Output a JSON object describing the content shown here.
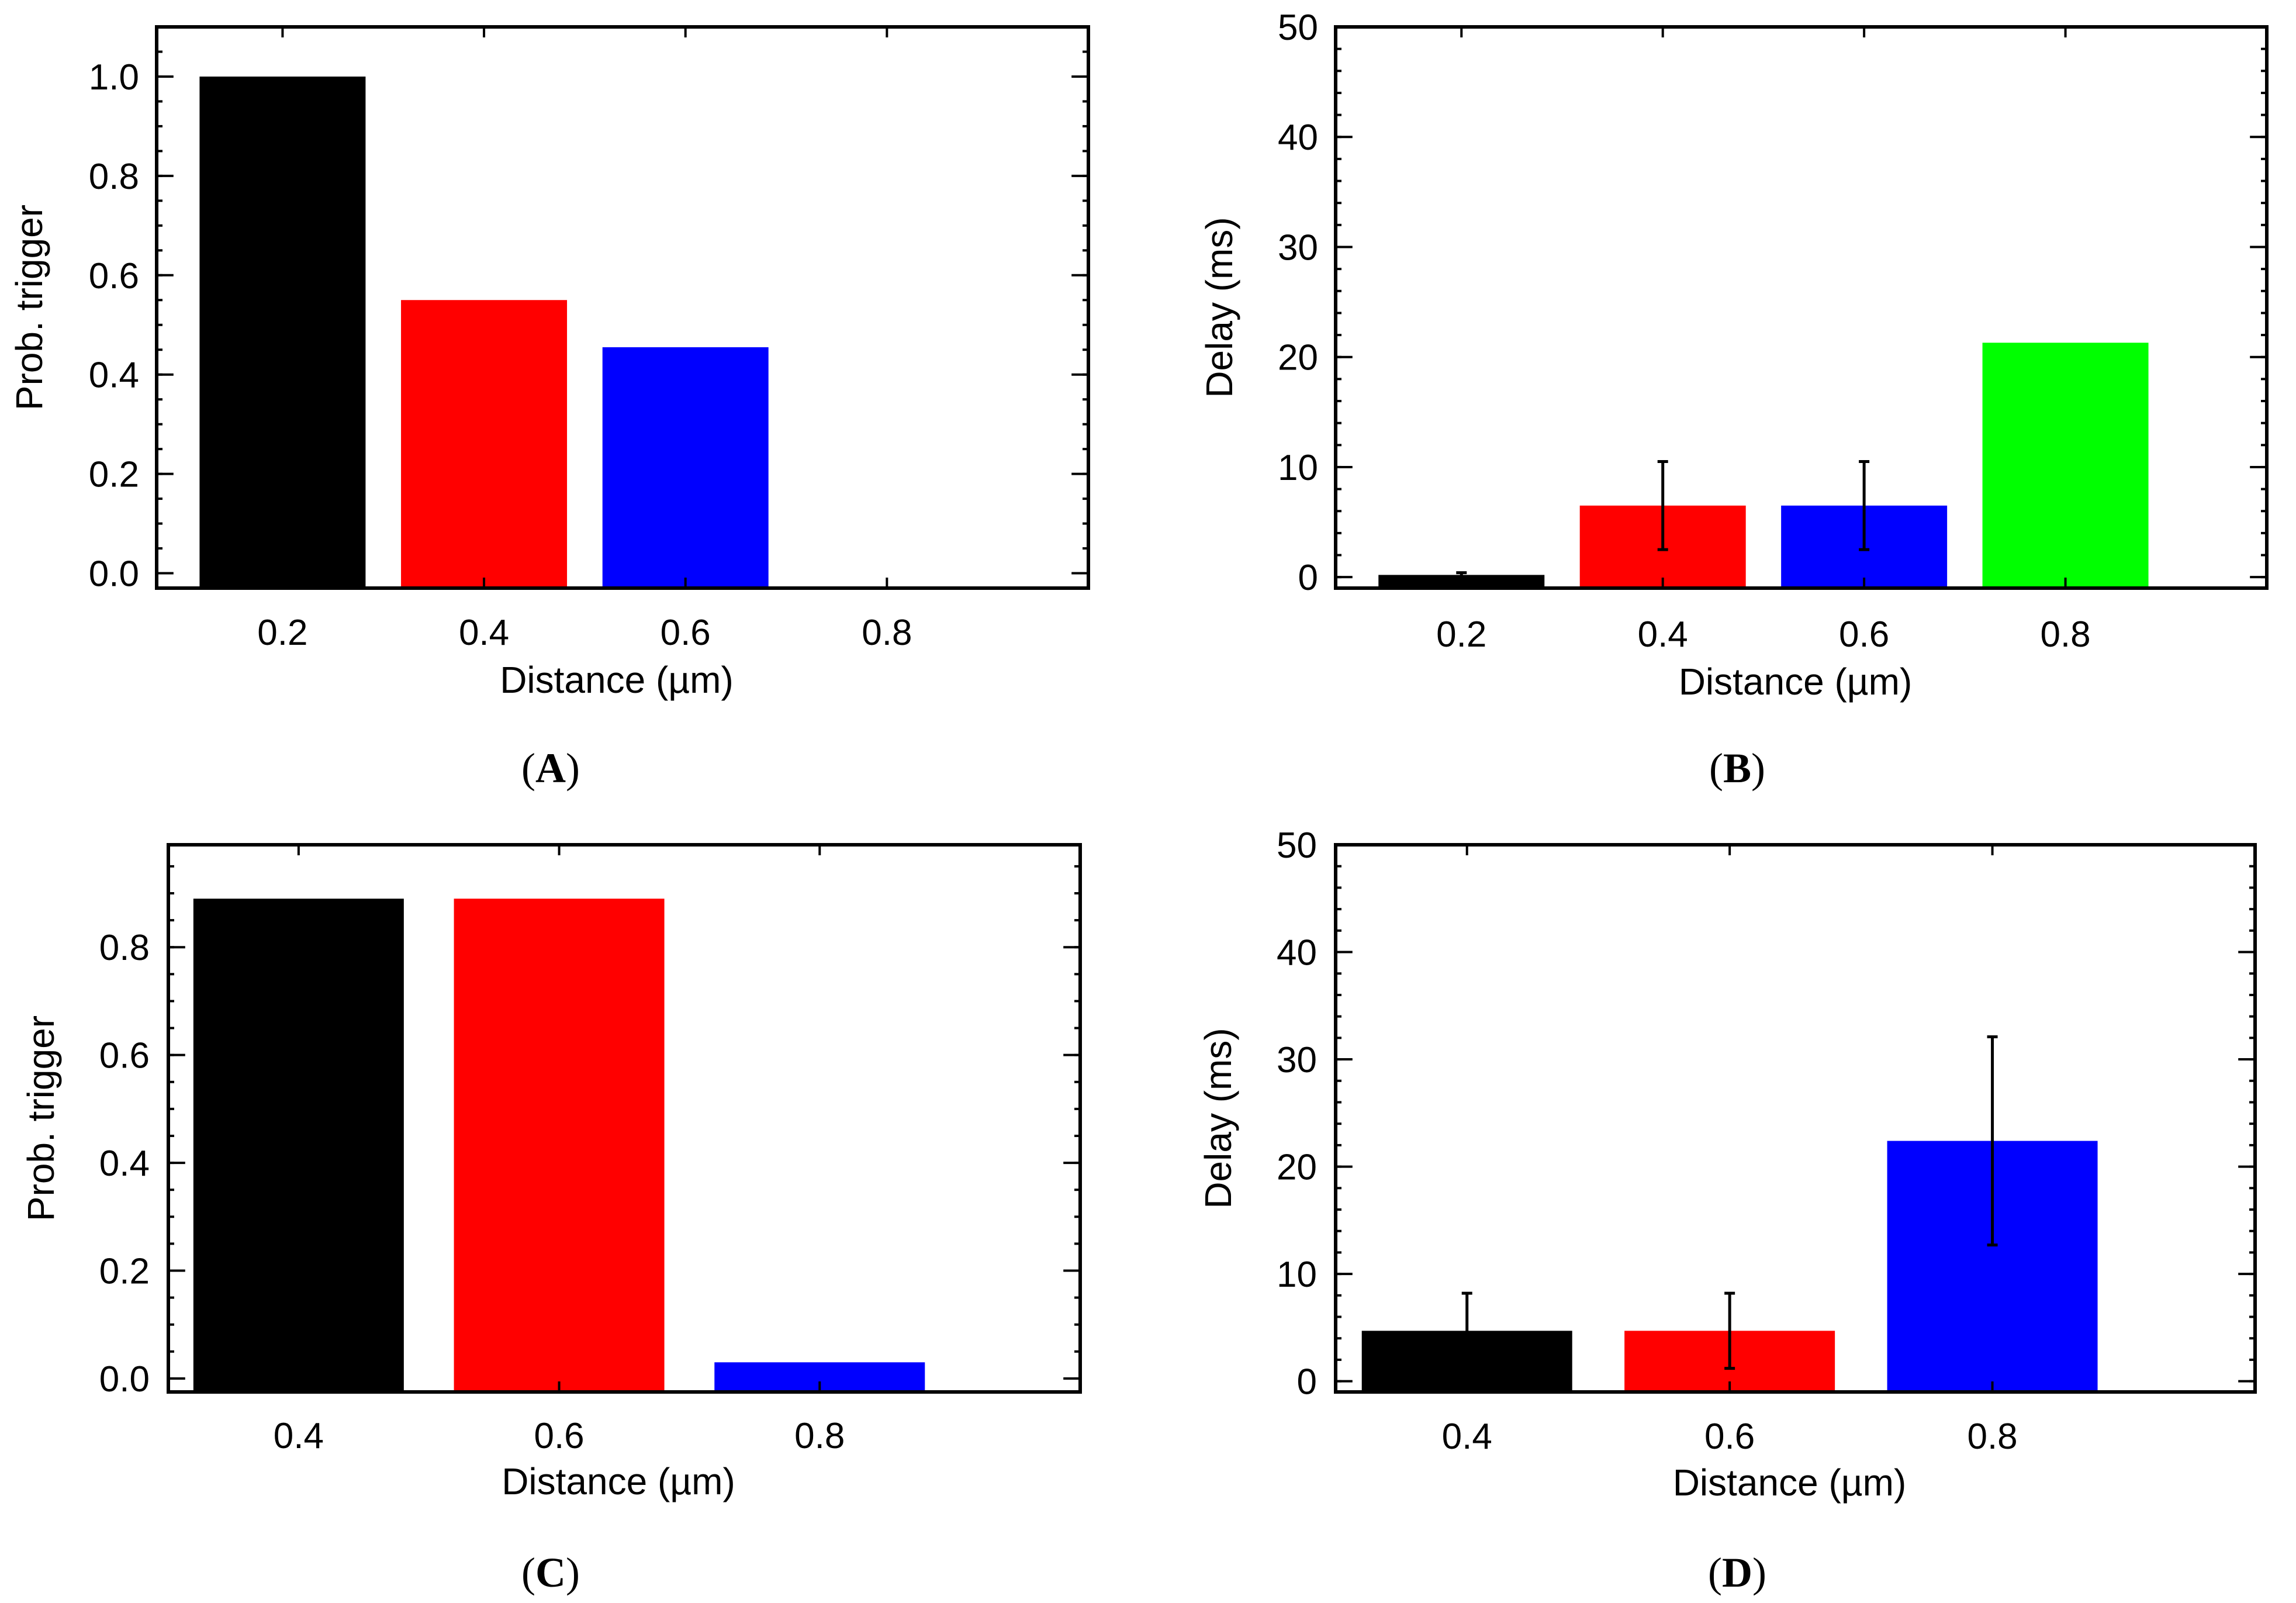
{
  "chart_data": [
    {
      "panel": "A",
      "type": "bar",
      "xlabel": "Distance (µm)",
      "ylabel": "Prob. trigger",
      "categories": [
        "0.2",
        "0.4",
        "0.6",
        "0.8"
      ],
      "values": [
        1.0,
        0.55,
        0.455,
        0.0
      ],
      "colors": [
        "#000000",
        "#ff0000",
        "#0000ff",
        "#00ff00"
      ],
      "errors": null,
      "ylim": [
        -0.03,
        1.1
      ],
      "yticks": [
        0.0,
        0.2,
        0.4,
        0.6,
        0.8,
        1.0
      ],
      "ytick_labels": [
        "0.0",
        "0.2",
        "0.4",
        "0.6",
        "0.8",
        "1.0"
      ],
      "minor_step": 0.05,
      "xlim": [
        0.075,
        1.0
      ]
    },
    {
      "panel": "B",
      "type": "bar",
      "xlabel": "Distance (µm)",
      "ylabel": "Delay (ms)",
      "categories": [
        "0.2",
        "0.4",
        "0.6",
        "0.8"
      ],
      "values": [
        0.2,
        6.5,
        6.5,
        21.3
      ],
      "colors": [
        "#000000",
        "#ff0000",
        "#0000ff",
        "#00ff00"
      ],
      "errors": [
        0.2,
        4.0,
        4.0,
        0.0
      ],
      "ylim": [
        -1.0,
        50.0
      ],
      "yticks": [
        0,
        10,
        20,
        30,
        40,
        50
      ],
      "ytick_labels": [
        "0",
        "10",
        "20",
        "30",
        "40",
        "50"
      ],
      "minor_step": 2,
      "xlim": [
        0.075,
        1.0
      ]
    },
    {
      "panel": "C",
      "type": "bar",
      "xlabel": "Distance (µm)",
      "ylabel": "Prob. trigger",
      "categories": [
        "0.4",
        "0.6",
        "0.8"
      ],
      "values": [
        0.89,
        0.89,
        0.03
      ],
      "colors": [
        "#000000",
        "#ff0000",
        "#0000ff"
      ],
      "errors": null,
      "ylim": [
        -0.025,
        0.99
      ],
      "yticks": [
        0.0,
        0.2,
        0.4,
        0.6,
        0.8
      ],
      "ytick_labels": [
        "0.0",
        "0.2",
        "0.4",
        "0.6",
        "0.8"
      ],
      "minor_step": 0.05,
      "xlim": [
        0.3,
        1.0
      ]
    },
    {
      "panel": "D",
      "type": "bar",
      "xlabel": "Distance (µm)",
      "ylabel": "Delay (ms)",
      "categories": [
        "0.4",
        "0.6",
        "0.8"
      ],
      "values": [
        4.7,
        4.7,
        22.4
      ],
      "colors": [
        "#000000",
        "#ff0000",
        "#0000ff"
      ],
      "errors": [
        3.5,
        3.5,
        9.7
      ],
      "ylim": [
        -1.0,
        50.0
      ],
      "yticks": [
        0,
        10,
        20,
        30,
        40,
        50
      ],
      "ytick_labels": [
        "0",
        "10",
        "20",
        "30",
        "40",
        "50"
      ],
      "minor_step": 2,
      "xlim": [
        0.3,
        1.0
      ]
    }
  ],
  "panel_labels": [
    "A",
    "B",
    "C",
    "D"
  ]
}
